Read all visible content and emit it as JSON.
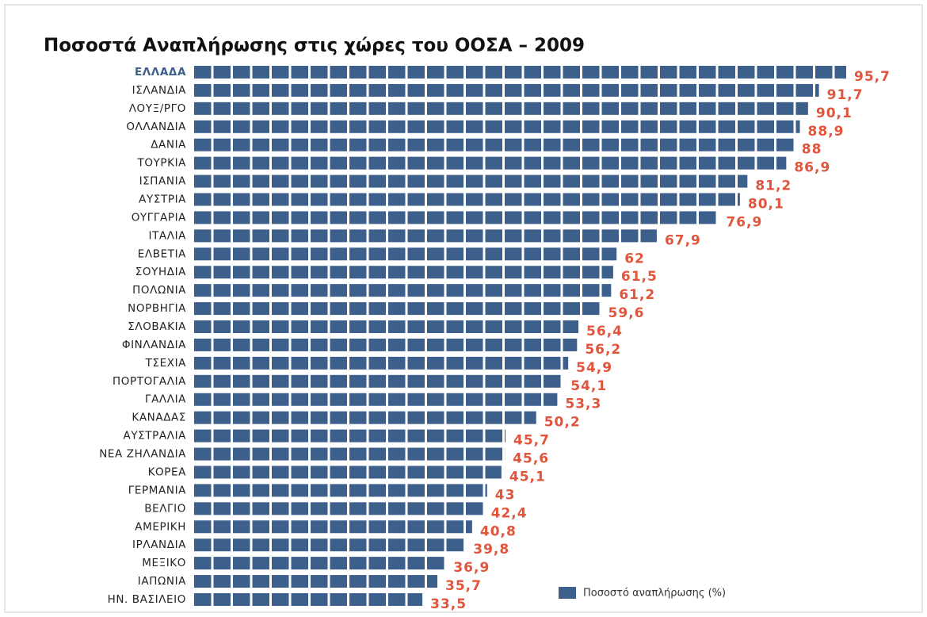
{
  "chart_data": {
    "type": "hbar",
    "title": "Ποσοστά Αναπλήρωσης στις χώρες του ΟΟΣΑ – 2009",
    "categories": [
      "ΕΛΛΑΔΑ",
      "ΙΣΛΑΝΔΙΑ",
      "ΛΟΥΞ/ΡΓΟ",
      "ΟΛΛΑΝΔΙΑ",
      "ΔΑΝΙΑ",
      "ΤΟΥΡΚΙΑ",
      "ΙΣΠΑΝΙΑ",
      "ΑΥΣΤΡΙΑ",
      "ΟΥΓΓΑΡΙΑ",
      "ΙΤΑΛΙΑ",
      "ΕΛΒΕΤΙΑ",
      "ΣΟΥΗΔΙΑ",
      "ΠΟΛΩΝΙΑ",
      "ΝΟΡΒΗΓΙΑ",
      "ΣΛΟΒΑΚΙΑ",
      "ΦΙΝΛΑΝΔΙΑ",
      "ΤΣΕΧΙΑ",
      "ΠΟΡΤΟΓΑΛΙΑ",
      "ΓΑΛΛΙΑ",
      "ΚΑΝΑΔΑΣ",
      "ΑΥΣΤΡΑΛΙΑ",
      "ΝΕΑ ΖΗΛΑΝΔΙΑ",
      "ΚΟΡΕΑ",
      "ΓΕΡΜΑΝΙΑ",
      "ΒΕΛΓΙΟ",
      "ΑΜΕΡΙΚΗ",
      "ΙΡΛΑΝΔΙΑ",
      "ΜΕΞΙΚΟ",
      "ΙΑΠΩΝΙΑ",
      "ΗΝ. ΒΑΣΙΛΕΙΟ"
    ],
    "series": [
      {
        "name": "Ποσοστό αναπλήρωσης (%)",
        "color": "#3d5f8c",
        "values": [
          95.7,
          91.7,
          90.1,
          88.9,
          88,
          86.9,
          81.2,
          80.1,
          76.9,
          67.9,
          62,
          61.5,
          61.2,
          59.6,
          56.4,
          56.2,
          54.9,
          54.1,
          53.3,
          50.2,
          45.7,
          45.6,
          45.1,
          43,
          42.4,
          40.8,
          39.8,
          36.9,
          35.7,
          33.5
        ],
        "value_labels": [
          "95,7",
          "91,7",
          "90,1",
          "88,9",
          "88",
          "86,9",
          "81,2",
          "80,1",
          "76,9",
          "67,9",
          "62",
          "61,5",
          "61,2",
          "59,6",
          "56,4",
          "56,2",
          "54,9",
          "54,1",
          "53,3",
          "50,2",
          "45,7",
          "45,6",
          "45,1",
          "43",
          "42,4",
          "40,8",
          "39,8",
          "36,9",
          "35,7",
          "33,5"
        ]
      }
    ]
  }
}
